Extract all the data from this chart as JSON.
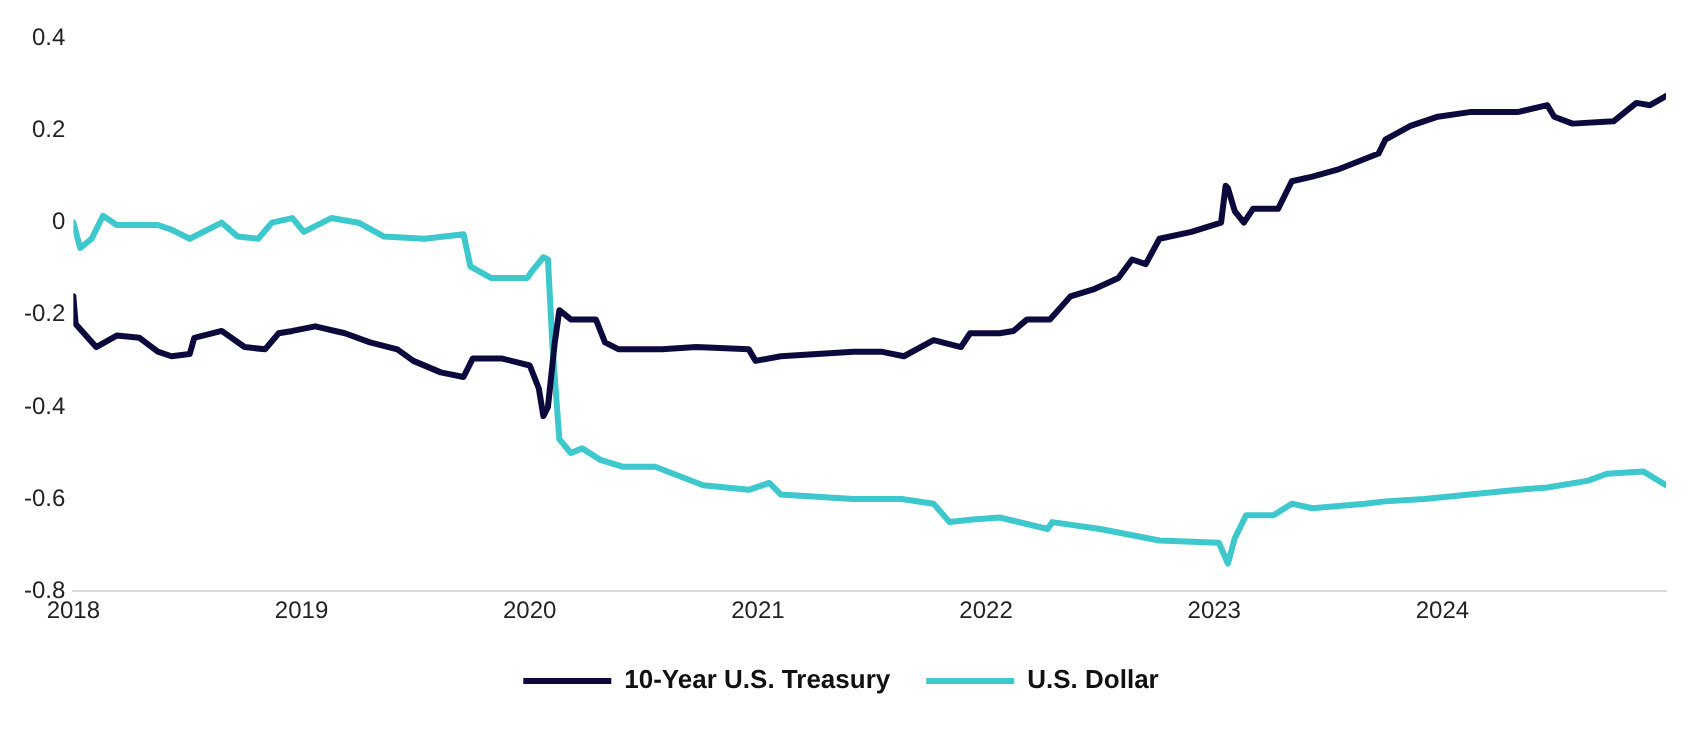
{
  "chart_data": {
    "type": "line",
    "xlim": [
      2018,
      2024.98
    ],
    "xticks": [
      2018,
      2019,
      2020,
      2021,
      2022,
      2023,
      2024
    ],
    "ylim": [
      -0.8,
      0.4
    ],
    "yticks": [
      -0.8,
      -0.6,
      -0.4,
      -0.2,
      0,
      0.2,
      0.4
    ],
    "legend": "bottom",
    "series": [
      {
        "name": "10-Year U.S. Treasury",
        "color": "#0c0a3c",
        "x": [
          2018.0,
          2018.01,
          2018.1,
          2018.19,
          2018.29,
          2018.37,
          2018.43,
          2018.51,
          2018.53,
          2018.65,
          2018.75,
          2018.84,
          2018.9,
          2018.96,
          2019.06,
          2019.19,
          2019.3,
          2019.42,
          2019.49,
          2019.61,
          2019.71,
          2019.75,
          2019.88,
          2020.0,
          2020.04,
          2020.06,
          2020.08,
          2020.11,
          2020.13,
          2020.18,
          2020.29,
          2020.33,
          2020.39,
          2020.58,
          2020.73,
          2020.96,
          2020.99,
          2021.1,
          2021.42,
          2021.54,
          2021.64,
          2021.77,
          2021.89,
          2021.93,
          2022.06,
          2022.12,
          2022.18,
          2022.28,
          2022.37,
          2022.47,
          2022.58,
          2022.64,
          2022.7,
          2022.76,
          2022.9,
          2023.03,
          2023.05,
          2023.06,
          2023.09,
          2023.13,
          2023.17,
          2023.28,
          2023.34,
          2023.43,
          2023.54,
          2023.72,
          2023.75,
          2023.86,
          2023.98,
          2024.12,
          2024.33,
          2024.46,
          2024.49,
          2024.57,
          2024.75,
          2024.85,
          2024.91,
          2024.98
        ],
        "values": [
          -0.16,
          -0.22,
          -0.27,
          -0.245,
          -0.25,
          -0.28,
          -0.29,
          -0.285,
          -0.25,
          -0.235,
          -0.27,
          -0.275,
          -0.24,
          -0.235,
          -0.225,
          -0.24,
          -0.26,
          -0.275,
          -0.3,
          -0.325,
          -0.335,
          -0.295,
          -0.295,
          -0.31,
          -0.36,
          -0.42,
          -0.4,
          -0.26,
          -0.19,
          -0.21,
          -0.21,
          -0.26,
          -0.275,
          -0.275,
          -0.27,
          -0.275,
          -0.3,
          -0.29,
          -0.28,
          -0.28,
          -0.29,
          -0.255,
          -0.27,
          -0.24,
          -0.24,
          -0.235,
          -0.21,
          -0.21,
          -0.16,
          -0.145,
          -0.12,
          -0.08,
          -0.09,
          -0.035,
          -0.02,
          0.0,
          0.08,
          0.075,
          0.025,
          0.0,
          0.03,
          0.03,
          0.09,
          0.1,
          0.115,
          0.15,
          0.18,
          0.21,
          0.23,
          0.24,
          0.24,
          0.255,
          0.23,
          0.215,
          0.22,
          0.26,
          0.255,
          0.275
        ]
      },
      {
        "name": "U.S. Dollar",
        "color": "#3cc8cc",
        "x": [
          2018.0,
          2018.03,
          2018.08,
          2018.13,
          2018.19,
          2018.37,
          2018.43,
          2018.51,
          2018.65,
          2018.72,
          2018.81,
          2018.87,
          2018.96,
          2019.01,
          2019.13,
          2019.25,
          2019.36,
          2019.54,
          2019.71,
          2019.74,
          2019.83,
          2019.99,
          2020.01,
          2020.06,
          2020.08,
          2020.1,
          2020.13,
          2020.18,
          2020.23,
          2020.31,
          2020.41,
          2020.55,
          2020.76,
          2020.96,
          2021.05,
          2021.1,
          2021.42,
          2021.63,
          2021.77,
          2021.84,
          2021.93,
          2022.06,
          2022.27,
          2022.29,
          2022.5,
          2022.76,
          2023.02,
          2023.06,
          2023.09,
          2023.14,
          2023.26,
          2023.34,
          2023.43,
          2023.66,
          2023.75,
          2023.92,
          2024.12,
          2024.33,
          2024.46,
          2024.64,
          2024.72,
          2024.88,
          2024.98
        ],
        "values": [
          0.0,
          -0.055,
          -0.035,
          0.015,
          -0.005,
          -0.005,
          -0.015,
          -0.035,
          0.0,
          -0.03,
          -0.035,
          0.0,
          0.01,
          -0.02,
          0.01,
          0.0,
          -0.03,
          -0.035,
          -0.025,
          -0.095,
          -0.12,
          -0.12,
          -0.105,
          -0.075,
          -0.08,
          -0.27,
          -0.47,
          -0.5,
          -0.49,
          -0.515,
          -0.53,
          -0.53,
          -0.57,
          -0.58,
          -0.565,
          -0.59,
          -0.6,
          -0.6,
          -0.61,
          -0.65,
          -0.645,
          -0.64,
          -0.665,
          -0.65,
          -0.665,
          -0.69,
          -0.695,
          -0.74,
          -0.685,
          -0.635,
          -0.635,
          -0.61,
          -0.62,
          -0.61,
          -0.605,
          -0.6,
          -0.59,
          -0.58,
          -0.575,
          -0.56,
          -0.545,
          -0.54,
          -0.57
        ]
      }
    ]
  }
}
